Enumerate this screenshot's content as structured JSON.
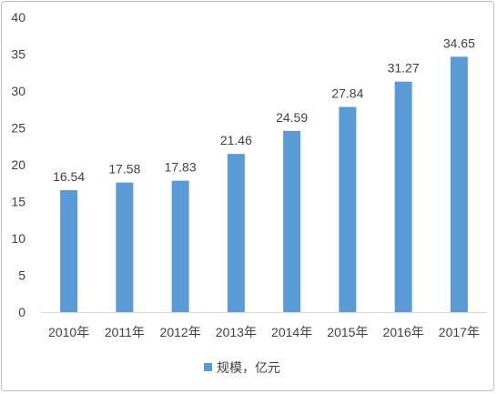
{
  "chart_data": {
    "type": "bar",
    "categories": [
      "2010年",
      "2011年",
      "2012年",
      "2013年",
      "2014年",
      "2015年",
      "2016年",
      "2017年"
    ],
    "series": [
      {
        "name": "规模，亿元",
        "values": [
          16.54,
          17.58,
          17.83,
          21.46,
          24.59,
          27.84,
          31.27,
          34.65
        ],
        "color": "#5b9bd5"
      }
    ],
    "value_labels": [
      "16.54",
      "17.58",
      "17.83",
      "21.46",
      "24.59",
      "27.84",
      "31.27",
      "34.65"
    ],
    "y_ticks": [
      "0",
      "5",
      "10",
      "15",
      "20",
      "25",
      "30",
      "35",
      "40"
    ],
    "ylim": [
      0,
      40
    ],
    "grid": false,
    "legend_position": "bottom",
    "title": "",
    "xlabel": "",
    "ylabel": ""
  }
}
